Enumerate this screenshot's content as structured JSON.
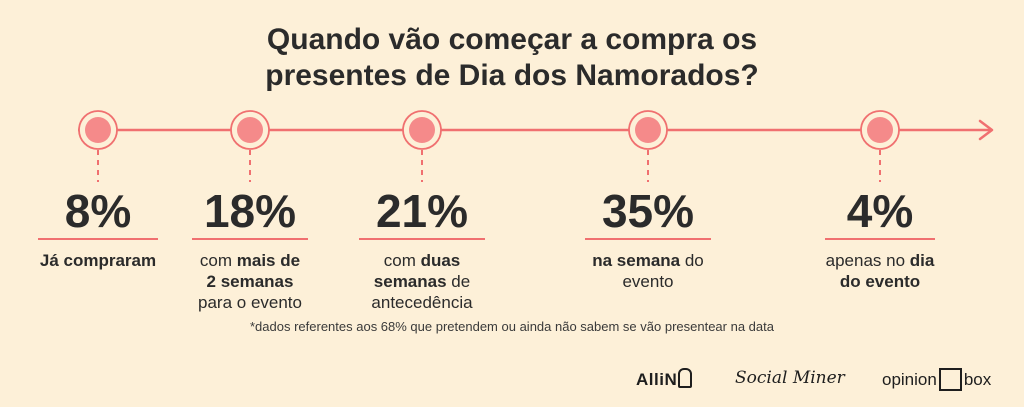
{
  "title": {
    "line1": "Quando vão começar a compra os",
    "line2": "presentes de Dia dos Namorados?"
  },
  "chart_data": {
    "type": "timeline",
    "values": [
      8,
      18,
      21,
      35,
      4
    ],
    "unit": "%",
    "items": [
      {
        "value": "8%",
        "parts": [
          {
            "t": "Já compraram",
            "b": true
          }
        ]
      },
      {
        "value": "18%",
        "parts": [
          {
            "t": "com ",
            "b": false
          },
          {
            "t": "mais de",
            "b": true
          },
          {
            "br": true
          },
          {
            "t": "2 semanas",
            "b": true
          },
          {
            "br": true
          },
          {
            "t": "para o evento",
            "b": false
          }
        ]
      },
      {
        "value": "21%",
        "parts": [
          {
            "t": "com ",
            "b": false
          },
          {
            "t": "duas",
            "b": true
          },
          {
            "br": true
          },
          {
            "t": "semanas",
            "b": true
          },
          {
            "t": " de",
            "b": false
          },
          {
            "br": true
          },
          {
            "t": "antecedência",
            "b": false
          }
        ]
      },
      {
        "value": "35%",
        "parts": [
          {
            "t": "na semana",
            "b": true
          },
          {
            "t": " do",
            "b": false
          },
          {
            "br": true
          },
          {
            "t": "evento",
            "b": false
          }
        ]
      },
      {
        "value": "4%",
        "parts": [
          {
            "t": "apenas no ",
            "b": false
          },
          {
            "t": "dia",
            "b": true
          },
          {
            "br": true
          },
          {
            "t": "do evento",
            "b": true
          }
        ]
      }
    ]
  },
  "footnote": "*dados referentes aos 68% que pretendem ou ainda não sabem se vão presentear na data",
  "logos": {
    "allin": "AlliN",
    "social_miner": "Social Miner",
    "opinion_box_left": "opinion",
    "opinion_box_right": "box"
  },
  "colors": {
    "background": "#fdf0d8",
    "accent": "#f07070",
    "dot": "#f58a8a",
    "text": "#2b2b2b"
  }
}
